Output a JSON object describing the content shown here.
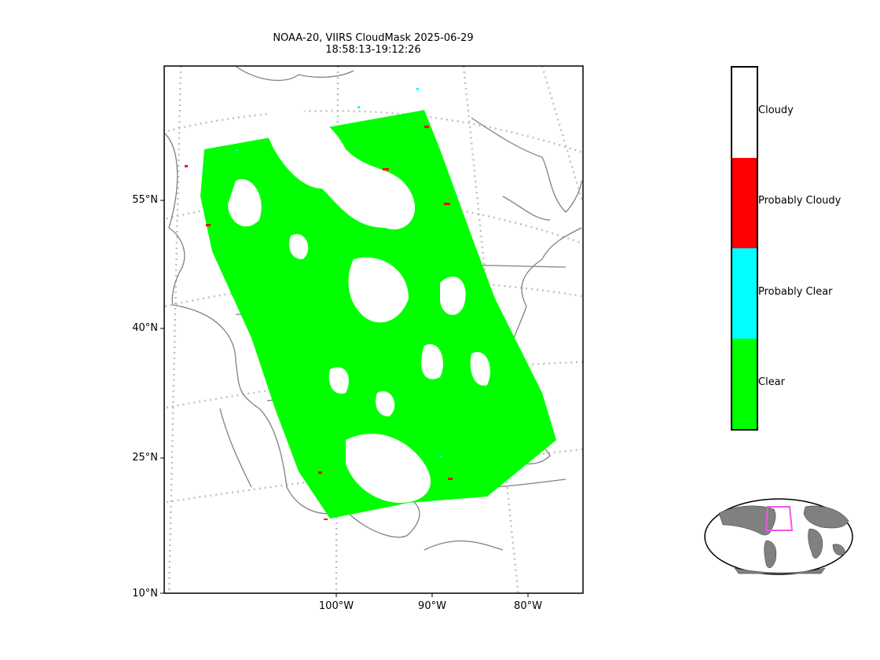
{
  "title": {
    "line1": "NOAA-20, VIIRS CloudMask 2025-06-29",
    "line2": "18:58:13-19:12:26"
  },
  "latitude_labels": [
    "55°N",
    "40°N",
    "25°N",
    "10°N"
  ],
  "longitude_labels": [
    "100°W",
    "90°W",
    "80°W"
  ],
  "legend": {
    "categories": [
      {
        "label": "Cloudy",
        "color": "#ffffff"
      },
      {
        "label": "Probably Cloudy",
        "color": "#ff0000"
      },
      {
        "label": "Probably Clear",
        "color": "#00ffff"
      },
      {
        "label": "Clear",
        "color": "#00ff00"
      }
    ]
  },
  "colors": {
    "clear": "#00ff00",
    "probably_cloudy": "#ff0000",
    "probably_clear": "#00ffff",
    "coastline": "#808080",
    "graticule": "#bfbfbf",
    "inset_land": "#808080",
    "inset_box": "#ee55ee"
  }
}
